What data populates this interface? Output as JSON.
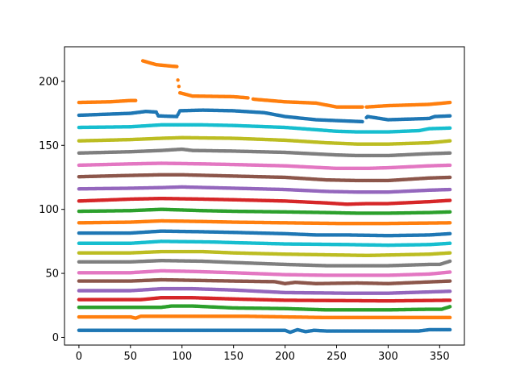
{
  "chart_data": {
    "type": "scatter",
    "title": "",
    "xlabel": "",
    "ylabel": "",
    "xlim": [
      -14,
      374
    ],
    "ylim": [
      -6,
      227
    ],
    "xticks": [
      0,
      50,
      100,
      150,
      200,
      250,
      300,
      350
    ],
    "yticks": [
      0,
      50,
      100,
      150,
      200
    ],
    "grid": false,
    "legend": "none",
    "x_start": 0,
    "x_end": 360,
    "x_step": 1,
    "series": [
      {
        "color": "#1f77b4",
        "keypoints": [
          [
            0,
            5.5
          ],
          [
            200,
            5.5
          ],
          [
            205,
            4
          ],
          [
            212,
            6
          ],
          [
            220,
            4.5
          ],
          [
            228,
            5.5
          ],
          [
            240,
            5
          ],
          [
            300,
            5
          ],
          [
            330,
            5
          ],
          [
            340,
            6
          ],
          [
            360,
            6
          ]
        ]
      },
      {
        "color": "#ff7f0e",
        "keypoints": [
          [
            0,
            16
          ],
          [
            50,
            16
          ],
          [
            55,
            15
          ],
          [
            60,
            16.5
          ],
          [
            160,
            16.5
          ],
          [
            200,
            16
          ],
          [
            240,
            15.5
          ],
          [
            360,
            15.5
          ]
        ]
      },
      {
        "color": "#2ca02c",
        "keypoints": [
          [
            0,
            23.5
          ],
          [
            80,
            23.5
          ],
          [
            90,
            24.5
          ],
          [
            110,
            24.5
          ],
          [
            150,
            23
          ],
          [
            200,
            22.5
          ],
          [
            240,
            21.5
          ],
          [
            300,
            21.5
          ],
          [
            340,
            22
          ],
          [
            352,
            22
          ],
          [
            360,
            24
          ]
        ]
      },
      {
        "color": "#d62728",
        "keypoints": [
          [
            0,
            29.5
          ],
          [
            60,
            29.5
          ],
          [
            80,
            31
          ],
          [
            110,
            31
          ],
          [
            150,
            30
          ],
          [
            200,
            29
          ],
          [
            300,
            28.5
          ],
          [
            360,
            29
          ]
        ]
      },
      {
        "color": "#9467bd",
        "keypoints": [
          [
            0,
            36.5
          ],
          [
            50,
            36.5
          ],
          [
            80,
            38
          ],
          [
            110,
            38
          ],
          [
            150,
            37
          ],
          [
            200,
            35
          ],
          [
            260,
            34.5
          ],
          [
            300,
            34.5
          ],
          [
            360,
            36
          ]
        ]
      },
      {
        "color": "#8c564b",
        "keypoints": [
          [
            0,
            44
          ],
          [
            50,
            44
          ],
          [
            80,
            45
          ],
          [
            150,
            44
          ],
          [
            190,
            43.5
          ],
          [
            200,
            42
          ],
          [
            210,
            43
          ],
          [
            230,
            42
          ],
          [
            270,
            42.5
          ],
          [
            300,
            42
          ],
          [
            360,
            44
          ]
        ]
      },
      {
        "color": "#e377c2",
        "keypoints": [
          [
            0,
            50.5
          ],
          [
            50,
            50.5
          ],
          [
            80,
            52
          ],
          [
            110,
            51.5
          ],
          [
            150,
            50.5
          ],
          [
            200,
            49
          ],
          [
            240,
            48.5
          ],
          [
            300,
            48.5
          ],
          [
            340,
            49.5
          ],
          [
            360,
            51
          ]
        ]
      },
      {
        "color": "#7f7f7f",
        "keypoints": [
          [
            0,
            59
          ],
          [
            50,
            59
          ],
          [
            80,
            60
          ],
          [
            120,
            59.5
          ],
          [
            150,
            58.5
          ],
          [
            200,
            57
          ],
          [
            240,
            56
          ],
          [
            300,
            56
          ],
          [
            340,
            57
          ],
          [
            350,
            57
          ],
          [
            360,
            59.5
          ]
        ]
      },
      {
        "color": "#bcbd22",
        "keypoints": [
          [
            0,
            66
          ],
          [
            50,
            66
          ],
          [
            80,
            67
          ],
          [
            120,
            67
          ],
          [
            150,
            66
          ],
          [
            200,
            65
          ],
          [
            240,
            64.5
          ],
          [
            280,
            64
          ],
          [
            340,
            65
          ],
          [
            360,
            66
          ]
        ]
      },
      {
        "color": "#17becf",
        "keypoints": [
          [
            0,
            73.5
          ],
          [
            50,
            73.5
          ],
          [
            80,
            75
          ],
          [
            130,
            74.5
          ],
          [
            150,
            74
          ],
          [
            200,
            73
          ],
          [
            260,
            72.5
          ],
          [
            300,
            72
          ],
          [
            340,
            72.5
          ],
          [
            360,
            73.5
          ]
        ]
      },
      {
        "color": "#1f77b4",
        "keypoints": [
          [
            0,
            81.5
          ],
          [
            50,
            81.5
          ],
          [
            80,
            83
          ],
          [
            120,
            82.5
          ],
          [
            150,
            82
          ],
          [
            200,
            81
          ],
          [
            230,
            80
          ],
          [
            260,
            80
          ],
          [
            300,
            79.5
          ],
          [
            340,
            80
          ],
          [
            360,
            81
          ]
        ]
      },
      {
        "color": "#ff7f0e",
        "keypoints": [
          [
            0,
            89.5
          ],
          [
            50,
            90
          ],
          [
            80,
            91
          ],
          [
            120,
            90.5
          ],
          [
            150,
            90
          ],
          [
            200,
            89.5
          ],
          [
            250,
            89
          ],
          [
            300,
            89
          ],
          [
            360,
            89.5
          ]
        ]
      },
      {
        "color": "#2ca02c",
        "keypoints": [
          [
            0,
            98.5
          ],
          [
            50,
            99
          ],
          [
            80,
            100
          ],
          [
            120,
            99
          ],
          [
            150,
            98.5
          ],
          [
            200,
            98
          ],
          [
            240,
            97.5
          ],
          [
            270,
            97
          ],
          [
            300,
            97
          ],
          [
            340,
            97.5
          ],
          [
            360,
            98
          ]
        ]
      },
      {
        "color": "#d62728",
        "keypoints": [
          [
            0,
            106.5
          ],
          [
            50,
            108
          ],
          [
            80,
            108.5
          ],
          [
            120,
            108
          ],
          [
            150,
            107.5
          ],
          [
            200,
            106.5
          ],
          [
            240,
            105
          ],
          [
            260,
            104
          ],
          [
            280,
            104.5
          ],
          [
            300,
            104.5
          ],
          [
            340,
            106
          ],
          [
            360,
            107
          ]
        ]
      },
      {
        "color": "#9467bd",
        "keypoints": [
          [
            0,
            116
          ],
          [
            50,
            116.5
          ],
          [
            80,
            117
          ],
          [
            100,
            117.5
          ],
          [
            150,
            116.5
          ],
          [
            200,
            115.5
          ],
          [
            240,
            114
          ],
          [
            270,
            113.5
          ],
          [
            300,
            113.5
          ],
          [
            340,
            115
          ],
          [
            360,
            115.5
          ]
        ]
      },
      {
        "color": "#8c564b",
        "keypoints": [
          [
            0,
            125.5
          ],
          [
            50,
            126.5
          ],
          [
            80,
            127
          ],
          [
            100,
            127
          ],
          [
            150,
            126
          ],
          [
            200,
            125
          ],
          [
            240,
            123
          ],
          [
            270,
            122.5
          ],
          [
            300,
            122.5
          ],
          [
            340,
            124.5
          ],
          [
            360,
            125
          ]
        ]
      },
      {
        "color": "#e377c2",
        "keypoints": [
          [
            0,
            134.5
          ],
          [
            50,
            135.5
          ],
          [
            80,
            136
          ],
          [
            120,
            135.5
          ],
          [
            150,
            135
          ],
          [
            200,
            134
          ],
          [
            250,
            132
          ],
          [
            280,
            132
          ],
          [
            300,
            132.5
          ],
          [
            340,
            134
          ],
          [
            360,
            134.5
          ]
        ]
      },
      {
        "color": "#7f7f7f",
        "keypoints": [
          [
            0,
            144
          ],
          [
            50,
            145
          ],
          [
            80,
            146
          ],
          [
            100,
            147
          ],
          [
            110,
            146
          ],
          [
            150,
            145.5
          ],
          [
            200,
            144.5
          ],
          [
            250,
            142.5
          ],
          [
            270,
            142
          ],
          [
            300,
            142
          ],
          [
            340,
            143.5
          ],
          [
            360,
            144
          ]
        ]
      },
      {
        "color": "#bcbd22",
        "keypoints": [
          [
            0,
            153.5
          ],
          [
            50,
            154.5
          ],
          [
            80,
            155.5
          ],
          [
            100,
            156
          ],
          [
            150,
            155.5
          ],
          [
            200,
            154
          ],
          [
            240,
            152
          ],
          [
            270,
            151
          ],
          [
            300,
            151
          ],
          [
            340,
            152
          ],
          [
            360,
            153.5
          ]
        ]
      },
      {
        "color": "#17becf",
        "keypoints": [
          [
            0,
            164
          ],
          [
            50,
            164.5
          ],
          [
            80,
            166
          ],
          [
            120,
            166
          ],
          [
            150,
            165.5
          ],
          [
            200,
            164
          ],
          [
            250,
            161
          ],
          [
            270,
            160.5
          ],
          [
            300,
            160.5
          ],
          [
            330,
            161.5
          ],
          [
            340,
            163
          ],
          [
            360,
            163.5
          ]
        ]
      },
      {
        "color": "#1f77b4",
        "keypoints": [
          [
            0,
            173.5
          ],
          [
            50,
            175
          ],
          [
            65,
            176.5
          ],
          [
            75,
            176
          ],
          [
            77,
            173
          ],
          [
            95,
            172.5
          ],
          [
            98,
            177
          ],
          [
            120,
            177.5
          ],
          [
            150,
            177
          ],
          [
            180,
            175.5
          ],
          [
            200,
            172.5
          ],
          [
            230,
            170
          ],
          [
            275,
            168.5
          ],
          [
            280,
            172.5
          ],
          [
            300,
            170
          ],
          [
            340,
            171
          ],
          [
            345,
            172.5
          ],
          [
            360,
            173
          ]
        ],
        "gaps": [
          [
            276,
            278
          ]
        ]
      },
      {
        "color": "#ff7f0e",
        "keypoints": [
          [
            0,
            183.5
          ],
          [
            30,
            184
          ],
          [
            50,
            185
          ],
          [
            60,
            185
          ],
          [
            62,
            216
          ],
          [
            75,
            213
          ],
          [
            95,
            211.5
          ],
          [
            96,
            201
          ],
          [
            98,
            191
          ],
          [
            110,
            188.5
          ],
          [
            150,
            188
          ],
          [
            165,
            187
          ],
          [
            170,
            186
          ],
          [
            200,
            184
          ],
          [
            230,
            183
          ],
          [
            250,
            180
          ],
          [
            280,
            180
          ],
          [
            300,
            181
          ],
          [
            340,
            182
          ],
          [
            360,
            183.5
          ]
        ],
        "gaps": [
          [
            56,
            61
          ],
          [
            165,
            168
          ],
          [
            276,
            278
          ]
        ]
      }
    ]
  }
}
